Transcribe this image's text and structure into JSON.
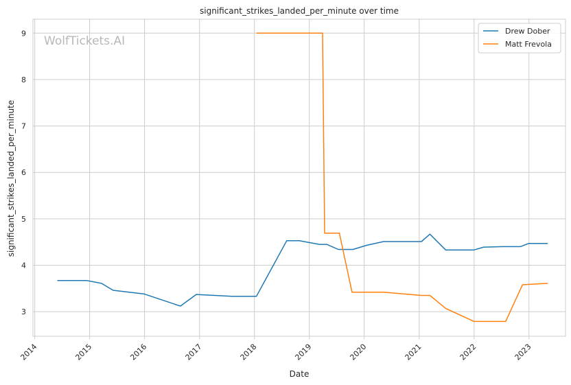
{
  "chart_data": {
    "type": "line",
    "title": "significant_strikes_landed_per_minute over time",
    "xlabel": "Date",
    "ylabel": "significant_strikes_landed_per_minute",
    "watermark": "WolfTickets.AI",
    "x_range": [
      "2013-12-20",
      "2023-09-01"
    ],
    "ylim": [
      2.47,
      9.3
    ],
    "x_ticks": [
      "2014",
      "2015",
      "2016",
      "2017",
      "2018",
      "2019",
      "2020",
      "2021",
      "2022",
      "2023"
    ],
    "y_ticks": [
      3,
      4,
      5,
      6,
      7,
      8,
      9
    ],
    "grid": true,
    "legend_position": "top-right",
    "series": [
      {
        "name": "Drew Dober",
        "color": "#1f77b4",
        "points": [
          [
            "2014-05-31",
            3.67
          ],
          [
            "2014-12-13",
            3.67
          ],
          [
            "2015-03-21",
            3.61
          ],
          [
            "2015-06-06",
            3.46
          ],
          [
            "2015-12-31",
            3.38
          ],
          [
            "2016-08-27",
            3.12
          ],
          [
            "2016-12-10",
            3.37
          ],
          [
            "2017-08-05",
            3.33
          ],
          [
            "2018-01-14",
            3.33
          ],
          [
            "2018-08-04",
            4.53
          ],
          [
            "2018-10-27",
            4.53
          ],
          [
            "2019-03-09",
            4.45
          ],
          [
            "2019-04-27",
            4.45
          ],
          [
            "2019-07-13",
            4.34
          ],
          [
            "2019-10-18",
            4.34
          ],
          [
            "2020-01-18",
            4.43
          ],
          [
            "2020-05-09",
            4.51
          ],
          [
            "2021-01-16",
            4.51
          ],
          [
            "2021-03-13",
            4.67
          ],
          [
            "2021-06-26",
            4.33
          ],
          [
            "2022-01-01",
            4.33
          ],
          [
            "2022-03-05",
            4.39
          ],
          [
            "2022-07-09",
            4.4
          ],
          [
            "2022-11-05",
            4.4
          ],
          [
            "2022-12-31",
            4.47
          ],
          [
            "2023-05-06",
            4.47
          ]
        ]
      },
      {
        "name": "Matt Frevola",
        "color": "#ff7f0e",
        "points": [
          [
            "2018-01-14",
            9.0
          ],
          [
            "2019-03-30",
            9.0
          ],
          [
            "2019-04-13",
            4.69
          ],
          [
            "2019-07-20",
            4.69
          ],
          [
            "2019-10-12",
            3.42
          ],
          [
            "2020-05-09",
            3.42
          ],
          [
            "2021-01-16",
            3.35
          ],
          [
            "2021-03-13",
            3.35
          ],
          [
            "2021-06-26",
            3.07
          ],
          [
            "2022-01-01",
            2.79
          ],
          [
            "2022-07-30",
            2.79
          ],
          [
            "2022-11-19",
            3.58
          ],
          [
            "2023-05-06",
            3.61
          ]
        ]
      }
    ]
  }
}
